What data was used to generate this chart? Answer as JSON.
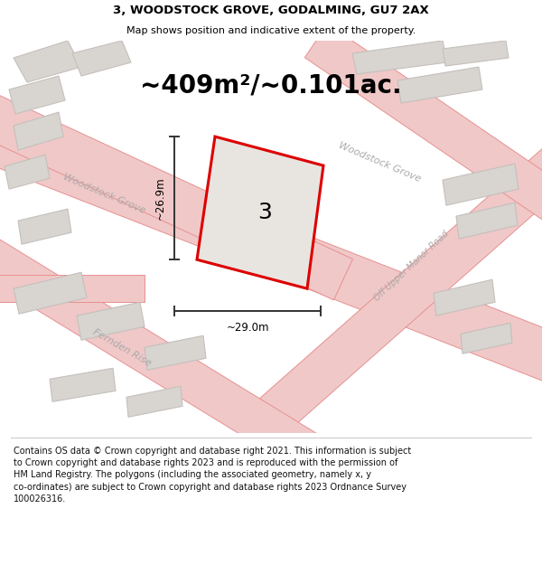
{
  "title": "3, WOODSTOCK GROVE, GODALMING, GU7 2AX",
  "subtitle": "Map shows position and indicative extent of the property.",
  "area_label": "~409m²/~0.101ac.",
  "property_number": "3",
  "dim_height": "~26.9m",
  "dim_width": "~29.0m",
  "footer": "Contains OS data © Crown copyright and database right 2021. This information is subject\nto Crown copyright and database rights 2023 and is reproduced with the permission of\nHM Land Registry. The polygons (including the associated geometry, namely x, y\nco-ordinates) are subject to Crown copyright and database rights 2023 Ordnance Survey\n100026316.",
  "bg_color": "#eeece8",
  "road_color": "#f0c8c8",
  "road_edge_color": "#e89090",
  "building_color": "#d8d4d0",
  "building_outline": "#c4c0bc",
  "property_fill": "#e8e5e0",
  "property_outline": "#dd0000",
  "inner_fill": "#d4d0cc",
  "inner_outline": "#b8b4b0",
  "dim_color": "#333333",
  "road_label_color": "#aaaaaa",
  "title_fontsize": 9.5,
  "subtitle_fontsize": 8,
  "area_fontsize": 20,
  "prop_num_fontsize": 18,
  "road_fontsize": 8,
  "dim_fontsize": 8.5,
  "footer_fontsize": 7
}
